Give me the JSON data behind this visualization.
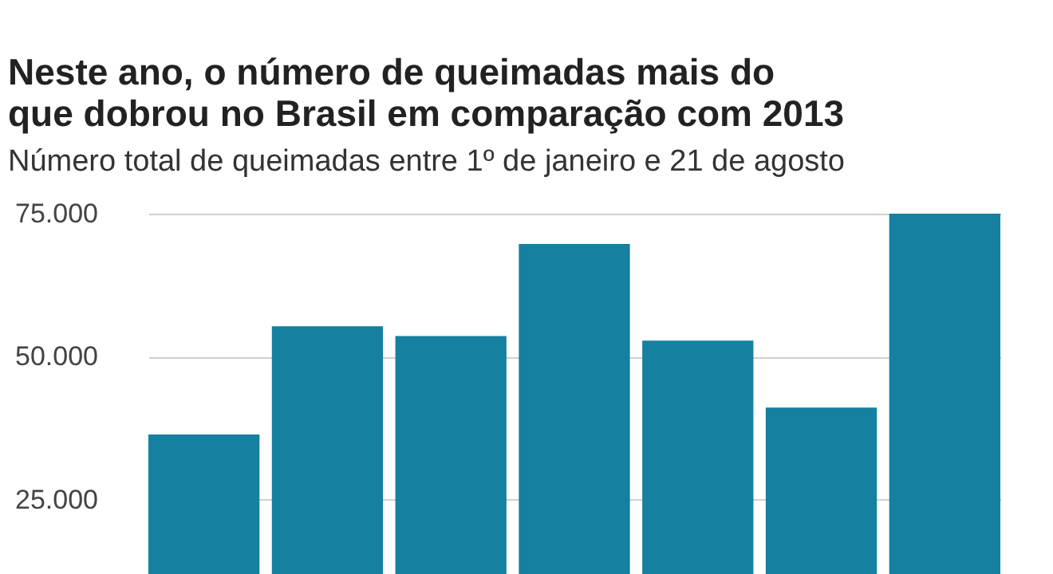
{
  "chart_data": {
    "type": "bar",
    "title": "Neste ano, o número de queimadas mais do que dobrou no Brasil em comparação com 2013",
    "subtitle": "Número total de queimadas entre 1º de janeiro e 21 de agosto",
    "categories": [
      null,
      null,
      null,
      null,
      null,
      null,
      null
    ],
    "values": [
      36400,
      55300,
      53600,
      69700,
      52800,
      41100,
      75000
    ],
    "color": "#1680a0",
    "ylim": [
      12000,
      75000
    ],
    "yticks": [
      {
        "value": 25000,
        "label": "25.000"
      },
      {
        "value": 50000,
        "label": "50.000"
      },
      {
        "value": 75000,
        "label": "75.000"
      }
    ],
    "grid": "y",
    "tick_labels": "y"
  }
}
